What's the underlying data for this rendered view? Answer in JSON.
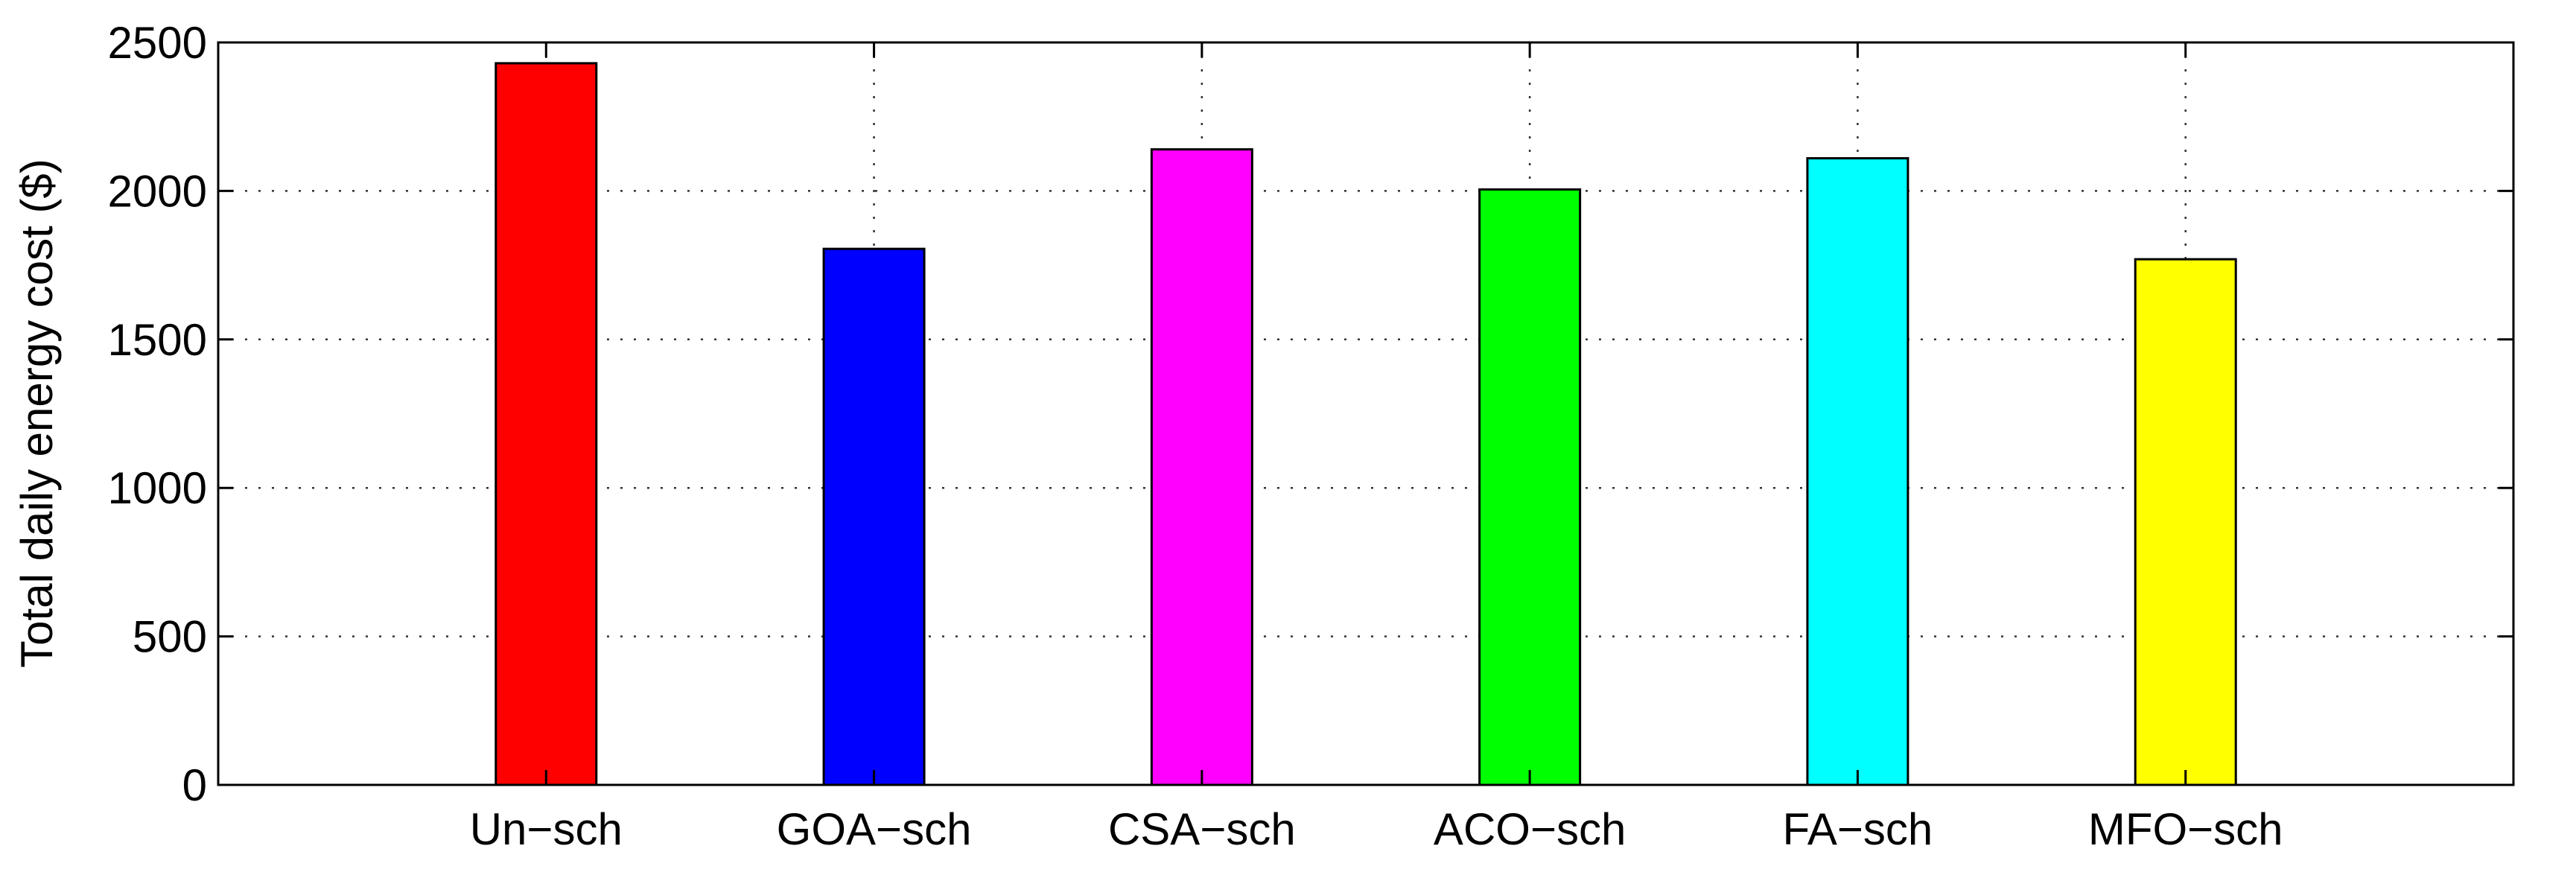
{
  "chart_data": {
    "type": "bar",
    "categories": [
      "Un−sch",
      "GOA−sch",
      "CSA−sch",
      "ACO−sch",
      "FA−sch",
      "MFO−sch"
    ],
    "values": [
      2430,
      1805,
      2140,
      2005,
      2110,
      1770
    ],
    "colors": [
      "#ff0000",
      "#0000ff",
      "#ff00ff",
      "#00ff00",
      "#00ffff",
      "#ffff00"
    ],
    "title": "",
    "xlabel": "",
    "ylabel": "Total daily energy cost ($)",
    "ylim": [
      0,
      2500
    ],
    "yticks": [
      0,
      500,
      1000,
      1500,
      2000,
      2500
    ],
    "grid": true,
    "legend": "none"
  }
}
